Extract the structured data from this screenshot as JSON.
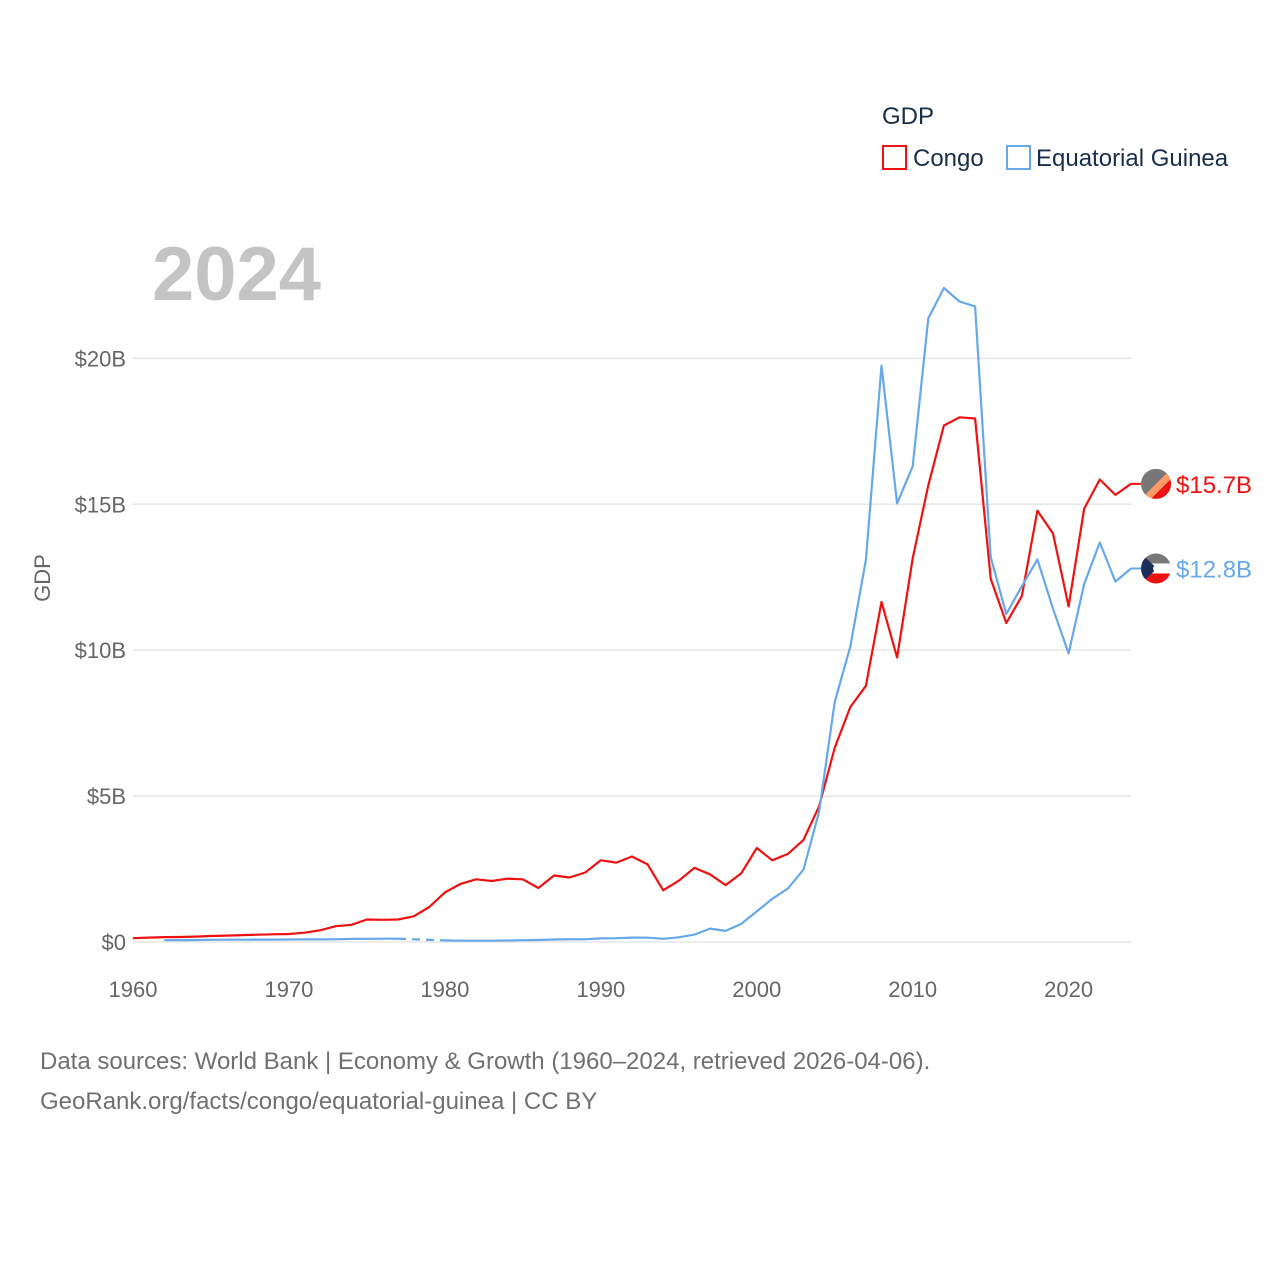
{
  "chart_data": {
    "type": "line",
    "title": "",
    "current_year": "2024",
    "ylabel": "GDP",
    "xlabel": "",
    "xlim": [
      1960,
      2024
    ],
    "ylim": [
      0,
      22000000000
    ],
    "x_ticks": [
      1960,
      1970,
      1980,
      1990,
      2000,
      2010,
      2020
    ],
    "x_tick_labels": [
      "1960",
      "1970",
      "1980",
      "1990",
      "2000",
      "2010",
      "2020"
    ],
    "y_ticks": [
      0,
      5000000000,
      10000000000,
      15000000000,
      20000000000
    ],
    "y_tick_labels": [
      "$0",
      "$5B",
      "$10B",
      "$15B",
      "$20B"
    ],
    "grid": true,
    "legend": {
      "title": "GDP",
      "position": "top-right",
      "entries": [
        "Congo",
        "Equatorial Guinea"
      ]
    },
    "series": [
      {
        "name": "Congo",
        "color": "#ee1111",
        "end_label": "$15.7B",
        "flag_colors": [
          "#ff9966",
          "#ee1111",
          "#777777"
        ],
        "x": [
          1960,
          1961,
          1962,
          1963,
          1964,
          1965,
          1966,
          1967,
          1968,
          1969,
          1970,
          1971,
          1972,
          1973,
          1974,
          1975,
          1976,
          1977,
          1978,
          1979,
          1980,
          1981,
          1982,
          1983,
          1984,
          1985,
          1986,
          1987,
          1988,
          1989,
          1990,
          1991,
          1992,
          1993,
          1994,
          1995,
          1996,
          1997,
          1998,
          1999,
          2000,
          2001,
          2002,
          2003,
          2004,
          2005,
          2006,
          2007,
          2008,
          2009,
          2010,
          2011,
          2012,
          2013,
          2014,
          2015,
          2016,
          2017,
          2018,
          2019,
          2020,
          2021,
          2022,
          2023,
          2024
        ],
        "values": [
          131000000,
          152000000,
          167000000,
          170000000,
          185000000,
          205000000,
          220000000,
          235000000,
          250000000,
          265000000,
          275000000,
          320000000,
          400000000,
          540000000,
          590000000,
          770000000,
          760000000,
          770000000,
          880000000,
          1200000000,
          1700000000,
          1990000000,
          2150000000,
          2090000000,
          2170000000,
          2150000000,
          1850000000,
          2280000000,
          2210000000,
          2380000000,
          2800000000,
          2720000000,
          2930000000,
          2660000000,
          1770000000,
          2100000000,
          2540000000,
          2320000000,
          1950000000,
          2350000000,
          3220000000,
          2800000000,
          3020000000,
          3500000000,
          4650000000,
          6650000000,
          8050000000,
          8780000000,
          11650000000,
          9750000000,
          13150000000,
          15650000000,
          17700000000,
          17980000000,
          17940000000,
          12450000000,
          10930000000,
          11850000000,
          14780000000,
          14000000000,
          11500000000,
          14850000000,
          15850000000,
          15320000000,
          15700000000
        ]
      },
      {
        "name": "Equatorial Guinea",
        "color": "#66a8e8",
        "end_label": "$12.8B",
        "flag_colors": [
          "#1a2e5a",
          "#ffffff",
          "#ee1111",
          "#777777"
        ],
        "x": [
          1962,
          1963,
          1964,
          1965,
          1966,
          1967,
          1968,
          1969,
          1970,
          1971,
          1972,
          1973,
          1974,
          1975,
          1976,
          1977,
          1978,
          1979,
          1980,
          1981,
          1982,
          1983,
          1984,
          1985,
          1986,
          1987,
          1988,
          1989,
          1990,
          1991,
          1992,
          1993,
          1994,
          1995,
          1996,
          1997,
          1998,
          1999,
          2000,
          2001,
          2002,
          2003,
          2004,
          2005,
          2006,
          2007,
          2008,
          2009,
          2010,
          2011,
          2012,
          2013,
          2014,
          2015,
          2016,
          2017,
          2018,
          2019,
          2020,
          2021,
          2022,
          2023,
          2024
        ],
        "values": [
          60000000,
          66000000,
          70000000,
          74000000,
          78000000,
          80000000,
          82000000,
          83000000,
          85000000,
          88000000,
          90000000,
          92000000,
          105000000,
          110000000,
          112000000,
          112000000,
          null,
          null,
          55000000,
          45000000,
          44000000,
          46000000,
          52000000,
          60000000,
          70000000,
          85000000,
          95000000,
          92000000,
          125000000,
          130000000,
          150000000,
          148000000,
          110000000,
          160000000,
          255000000,
          460000000,
          380000000,
          620000000,
          1050000000,
          1480000000,
          1830000000,
          2480000000,
          4460000000,
          8220000000,
          10120000000,
          13090000000,
          19750000000,
          15030000000,
          16300000000,
          21370000000,
          22410000000,
          21950000000,
          21780000000,
          13190000000,
          11240000000,
          12190000000,
          13110000000,
          11420000000,
          9890000000,
          12270000000,
          13690000000,
          12350000000,
          12800000000
        ]
      }
    ],
    "gap_segment": {
      "series": "Equatorial Guinea",
      "x": [
        1977,
        1980
      ],
      "values": [
        112000000,
        55000000
      ]
    }
  },
  "source": {
    "line1": "Data sources: World Bank | Economy & Growth (1960–2024, retrieved 2026-04-06).",
    "line2": "GeoRank.org/facts/congo/equatorial-guinea | CC BY"
  }
}
